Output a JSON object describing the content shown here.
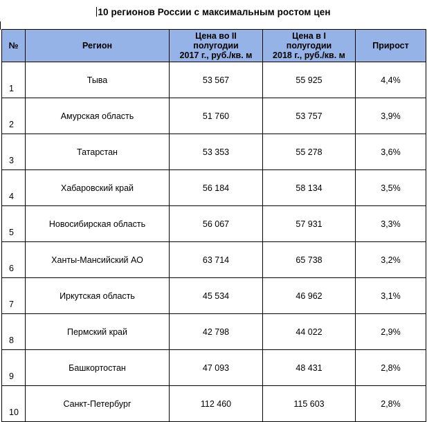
{
  "title": "10 регионов России с максимальным ростом цен",
  "columns": {
    "num": "№",
    "region": "Регион",
    "price_2017": [
      "Цена во II",
      "полугодии",
      "2017 г., руб./кв. м"
    ],
    "price_2018": [
      "Цена в I",
      "полугодии",
      "2018 г., руб./кв. м"
    ],
    "growth": "Прирост"
  },
  "rows": [
    {
      "num": "1",
      "region": "Тыва",
      "price_2017": "53 567",
      "price_2018": "55 925",
      "growth": "4,4%"
    },
    {
      "num": "2",
      "region": "Амурская область",
      "price_2017": "51 760",
      "price_2018": "53 757",
      "growth": "3,9%"
    },
    {
      "num": "3",
      "region": "Татарстан",
      "price_2017": "53 353",
      "price_2018": "55 278",
      "growth": "3,6%"
    },
    {
      "num": "4",
      "region": "Хабаровский край",
      "price_2017": "56 184",
      "price_2018": "58 134",
      "growth": "3,5%"
    },
    {
      "num": "5",
      "region": "Новосибирская область",
      "price_2017": "56 067",
      "price_2018": "57 931",
      "growth": "3,3%"
    },
    {
      "num": "6",
      "region": "Ханты-Мансийский АО",
      "price_2017": "63 714",
      "price_2018": "65 738",
      "growth": "3,2%"
    },
    {
      "num": "7",
      "region": "Иркутская область",
      "price_2017": "45 534",
      "price_2018": "46 962",
      "growth": "3,1%"
    },
    {
      "num": "8",
      "region": "Пермский край",
      "price_2017": "42 798",
      "price_2018": "44 022",
      "growth": "2,9%"
    },
    {
      "num": "9",
      "region": "Башкортостан",
      "price_2017": "47 093",
      "price_2018": "48 431",
      "growth": "2,8%"
    },
    {
      "num": "10",
      "region": "Санкт-Петербург",
      "price_2017": "112 460",
      "price_2018": "115 603",
      "growth": "2,8%"
    }
  ],
  "colors": {
    "header_bg": "#95b3e7",
    "border": "#000000"
  }
}
